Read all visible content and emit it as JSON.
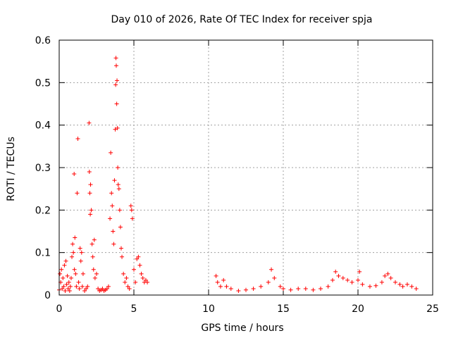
{
  "chart_data": {
    "type": "scatter",
    "title": "Day 010 of 2026, Rate Of TEC Index for receiver spja",
    "xlabel": "GPS time / hours",
    "ylabel": "ROTI / TECUs",
    "xlim": [
      0,
      25
    ],
    "ylim": [
      0,
      0.6
    ],
    "xticks": [
      0,
      5,
      10,
      15,
      20,
      25
    ],
    "yticks": [
      0,
      0.1,
      0.2,
      0.3,
      0.4,
      0.5,
      0.6
    ],
    "xtick_labels": [
      "0",
      "5",
      "10",
      "15",
      "20",
      "25"
    ],
    "ytick_labels": [
      "0",
      "0.1",
      "0.2",
      "0.3",
      "0.4",
      "0.5",
      "0.6"
    ],
    "grid": true,
    "marker": "+",
    "series_color": "#ff0000",
    "series": [
      {
        "name": "spja",
        "points": [
          [
            0.0,
            0.012
          ],
          [
            0.05,
            0.05
          ],
          [
            0.1,
            0.03
          ],
          [
            0.15,
            0.06
          ],
          [
            0.2,
            0.015
          ],
          [
            0.25,
            0.04
          ],
          [
            0.3,
            0.02
          ],
          [
            0.35,
            0.07
          ],
          [
            0.4,
            0.01
          ],
          [
            0.45,
            0.08
          ],
          [
            0.5,
            0.025
          ],
          [
            0.55,
            0.045
          ],
          [
            0.6,
            0.015
          ],
          [
            0.65,
            0.03
          ],
          [
            0.7,
            0.01
          ],
          [
            0.75,
            0.02
          ],
          [
            0.8,
            0.04
          ],
          [
            0.85,
            0.09
          ],
          [
            0.9,
            0.12
          ],
          [
            0.95,
            0.1
          ],
          [
            1.0,
            0.285
          ],
          [
            1.02,
            0.06
          ],
          [
            1.05,
            0.135
          ],
          [
            1.1,
            0.05
          ],
          [
            1.15,
            0.02
          ],
          [
            1.2,
            0.24
          ],
          [
            1.25,
            0.368
          ],
          [
            1.3,
            0.03
          ],
          [
            1.35,
            0.015
          ],
          [
            1.4,
            0.11
          ],
          [
            1.45,
            0.08
          ],
          [
            1.5,
            0.1
          ],
          [
            1.55,
            0.02
          ],
          [
            1.6,
            0.05
          ],
          [
            1.7,
            0.01
          ],
          [
            1.8,
            0.015
          ],
          [
            1.9,
            0.02
          ],
          [
            2.0,
            0.405
          ],
          [
            2.02,
            0.29
          ],
          [
            2.05,
            0.24
          ],
          [
            2.08,
            0.19
          ],
          [
            2.1,
            0.26
          ],
          [
            2.15,
            0.2
          ],
          [
            2.2,
            0.12
          ],
          [
            2.25,
            0.09
          ],
          [
            2.3,
            0.06
          ],
          [
            2.35,
            0.13
          ],
          [
            2.4,
            0.04
          ],
          [
            2.5,
            0.05
          ],
          [
            2.6,
            0.015
          ],
          [
            2.7,
            0.01
          ],
          [
            2.8,
            0.012
          ],
          [
            2.9,
            0.015
          ],
          [
            3.0,
            0.01
          ],
          [
            3.1,
            0.012
          ],
          [
            3.2,
            0.015
          ],
          [
            3.3,
            0.02
          ],
          [
            3.4,
            0.18
          ],
          [
            3.45,
            0.335
          ],
          [
            3.5,
            0.24
          ],
          [
            3.55,
            0.21
          ],
          [
            3.6,
            0.15
          ],
          [
            3.65,
            0.12
          ],
          [
            3.7,
            0.27
          ],
          [
            3.75,
            0.39
          ],
          [
            3.78,
            0.495
          ],
          [
            3.8,
            0.558
          ],
          [
            3.82,
            0.54
          ],
          [
            3.85,
            0.45
          ],
          [
            3.87,
            0.505
          ],
          [
            3.9,
            0.393
          ],
          [
            3.92,
            0.3
          ],
          [
            3.95,
            0.26
          ],
          [
            4.0,
            0.25
          ],
          [
            4.05,
            0.2
          ],
          [
            4.1,
            0.16
          ],
          [
            4.15,
            0.11
          ],
          [
            4.2,
            0.09
          ],
          [
            4.3,
            0.05
          ],
          [
            4.4,
            0.03
          ],
          [
            4.5,
            0.04
          ],
          [
            4.6,
            0.02
          ],
          [
            4.7,
            0.015
          ],
          [
            4.8,
            0.21
          ],
          [
            4.85,
            0.2
          ],
          [
            4.9,
            0.18
          ],
          [
            5.0,
            0.06
          ],
          [
            5.1,
            0.03
          ],
          [
            5.2,
            0.085
          ],
          [
            5.3,
            0.09
          ],
          [
            5.4,
            0.07
          ],
          [
            5.5,
            0.05
          ],
          [
            5.6,
            0.04
          ],
          [
            5.7,
            0.03
          ],
          [
            5.8,
            0.035
          ],
          [
            5.9,
            0.03
          ],
          [
            10.5,
            0.045
          ],
          [
            10.6,
            0.03
          ],
          [
            10.8,
            0.02
          ],
          [
            11.0,
            0.035
          ],
          [
            11.2,
            0.02
          ],
          [
            11.5,
            0.015
          ],
          [
            12.0,
            0.01
          ],
          [
            12.5,
            0.012
          ],
          [
            13.0,
            0.015
          ],
          [
            13.5,
            0.02
          ],
          [
            14.0,
            0.03
          ],
          [
            14.2,
            0.06
          ],
          [
            14.4,
            0.04
          ],
          [
            14.8,
            0.02
          ],
          [
            15.0,
            0.015
          ],
          [
            15.5,
            0.012
          ],
          [
            16.0,
            0.015
          ],
          [
            16.5,
            0.015
          ],
          [
            17.0,
            0.012
          ],
          [
            17.5,
            0.015
          ],
          [
            18.0,
            0.02
          ],
          [
            18.3,
            0.035
          ],
          [
            18.5,
            0.055
          ],
          [
            18.7,
            0.045
          ],
          [
            19.0,
            0.04
          ],
          [
            19.3,
            0.035
          ],
          [
            19.6,
            0.03
          ],
          [
            20.0,
            0.035
          ],
          [
            20.1,
            0.055
          ],
          [
            20.3,
            0.025
          ],
          [
            20.8,
            0.02
          ],
          [
            21.2,
            0.022
          ],
          [
            21.6,
            0.03
          ],
          [
            21.8,
            0.045
          ],
          [
            22.0,
            0.05
          ],
          [
            22.2,
            0.04
          ],
          [
            22.5,
            0.03
          ],
          [
            22.8,
            0.025
          ],
          [
            23.0,
            0.02
          ],
          [
            23.3,
            0.025
          ],
          [
            23.6,
            0.02
          ],
          [
            23.9,
            0.015
          ]
        ]
      }
    ]
  }
}
